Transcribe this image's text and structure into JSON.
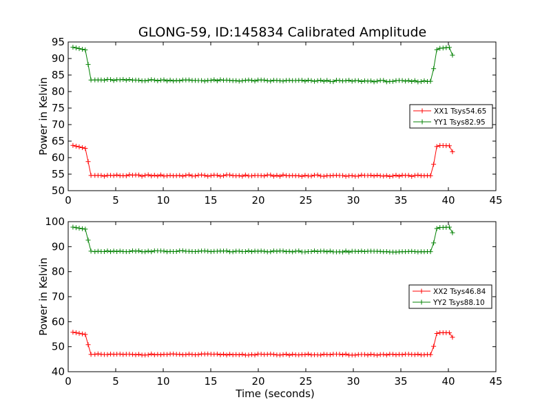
{
  "title": "GLONG-59, ID:145834 Calibrated Amplitude",
  "colors": {
    "xx": "#ff0000",
    "yy": "#008000",
    "axis": "#000000",
    "background": "#ffffff"
  },
  "chart_data": [
    {
      "type": "line",
      "title": "GLONG-59, ID:145834 Calibrated Amplitude",
      "xlabel": "",
      "ylabel": "Power in Kelvin",
      "xlim": [
        0,
        45
      ],
      "ylim": [
        50,
        95
      ],
      "xticks": [
        0,
        5,
        10,
        15,
        20,
        25,
        30,
        35,
        40,
        45
      ],
      "yticks": [
        50,
        55,
        60,
        65,
        70,
        75,
        80,
        85,
        90,
        95
      ],
      "grid": false,
      "legend": "center-right",
      "marker": "plus",
      "sample_interval_seconds": 0.33,
      "series": [
        {
          "name": "XX1 Tsys54.65",
          "color": "#ff0000",
          "x_start": 0.5,
          "x_end": 40.5,
          "levels": {
            "before": 63.7,
            "during": 54.5,
            "after": 63.7,
            "last": 61.2
          },
          "transition_points": [
            [
              0.5,
              63.7
            ],
            [
              1.8,
              62.8
            ],
            [
              2.1,
              58.8
            ],
            [
              2.4,
              54.6
            ],
            [
              38.2,
              54.5
            ],
            [
              38.5,
              58.7
            ],
            [
              38.8,
              63.7
            ],
            [
              40.2,
              63.6
            ],
            [
              40.5,
              61.2
            ]
          ]
        },
        {
          "name": "YY1 Tsys82.95",
          "color": "#008000",
          "x_start": 0.5,
          "x_end": 40.5,
          "levels": {
            "before": 93.4,
            "during": 83.2,
            "after": 93.4,
            "last": 90.3
          },
          "transition_points": [
            [
              0.5,
              93.4
            ],
            [
              1.8,
              92.6
            ],
            [
              2.1,
              88.2
            ],
            [
              2.4,
              83.5
            ],
            [
              38.2,
              83.1
            ],
            [
              38.5,
              87.7
            ],
            [
              38.8,
              93.0
            ],
            [
              40.2,
              93.4
            ],
            [
              40.5,
              90.3
            ]
          ]
        }
      ]
    },
    {
      "type": "line",
      "title": "",
      "xlabel": "Time (seconds)",
      "ylabel": "Power in Kelvin",
      "xlim": [
        0,
        45
      ],
      "ylim": [
        40,
        100
      ],
      "xticks": [
        0,
        5,
        10,
        15,
        20,
        25,
        30,
        35,
        40,
        45
      ],
      "yticks": [
        40,
        50,
        60,
        70,
        80,
        90,
        100
      ],
      "grid": false,
      "legend": "center-right",
      "marker": "plus",
      "sample_interval_seconds": 0.33,
      "series": [
        {
          "name": "XX2 Tsys46.84",
          "color": "#ff0000",
          "x_start": 0.5,
          "x_end": 40.5,
          "levels": {
            "before": 55.8,
            "during": 46.8,
            "after": 55.8,
            "last": 53.2
          },
          "transition_points": [
            [
              0.5,
              55.8
            ],
            [
              1.8,
              54.9
            ],
            [
              2.1,
              50.8
            ],
            [
              2.4,
              46.9
            ],
            [
              38.2,
              46.8
            ],
            [
              38.5,
              50.8
            ],
            [
              38.8,
              55.6
            ],
            [
              40.2,
              55.6
            ],
            [
              40.5,
              53.2
            ]
          ]
        },
        {
          "name": "YY2 Tsys88.10",
          "color": "#008000",
          "x_start": 0.5,
          "x_end": 40.5,
          "levels": {
            "before": 97.8,
            "during": 88.0,
            "after": 97.8,
            "last": 94.9
          },
          "transition_points": [
            [
              0.5,
              97.8
            ],
            [
              1.8,
              97.0
            ],
            [
              2.1,
              92.6
            ],
            [
              2.4,
              88.2
            ],
            [
              38.2,
              88.0
            ],
            [
              38.5,
              92.2
            ],
            [
              38.8,
              97.6
            ],
            [
              40.2,
              97.8
            ],
            [
              40.5,
              94.9
            ]
          ]
        }
      ]
    }
  ]
}
